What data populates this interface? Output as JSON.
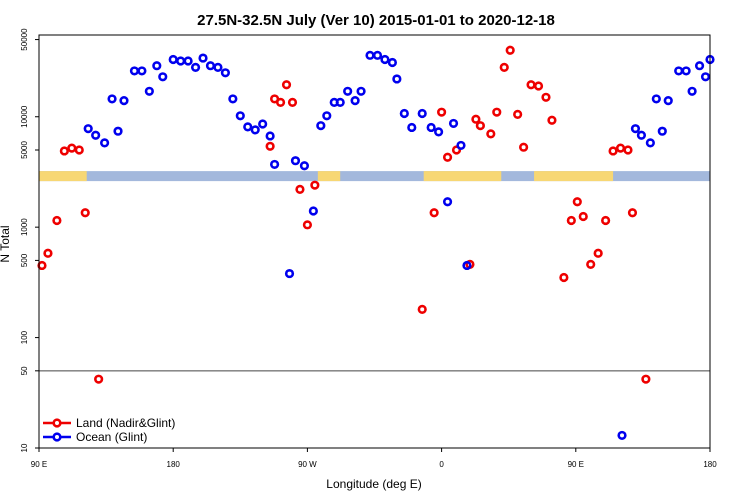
{
  "chart_data": {
    "type": "scatter",
    "title": "27.5N-32.5N July (Ver 10)   2015-01-01 to 2020-12-18",
    "xlabel": "Longitude (deg E)",
    "ylabel": "N Total",
    "x_ticks": [
      {
        "value": 90,
        "label": "90 E"
      },
      {
        "value": 180,
        "label": "180"
      },
      {
        "value": 270,
        "label": "90 W"
      },
      {
        "value": 360,
        "label": "0"
      },
      {
        "value": 450,
        "label": "90 E"
      },
      {
        "value": 540,
        "label": "180"
      }
    ],
    "xlim": [
      90,
      540
    ],
    "y_scale": "log",
    "ylim": [
      10,
      55000
    ],
    "y_ticks": [
      {
        "value": 10,
        "label": "10"
      },
      {
        "value": 50,
        "label": "50"
      },
      {
        "value": 100,
        "label": "100"
      },
      {
        "value": 500,
        "label": "500"
      },
      {
        "value": 1000,
        "label": "1000"
      },
      {
        "value": 5000,
        "label": "5000"
      },
      {
        "value": 10000,
        "label": "10000"
      },
      {
        "value": 50000,
        "label": "50000"
      }
    ],
    "reference_line": {
      "y": 50,
      "color": "#444444"
    },
    "landmask_band": {
      "y": 2900,
      "ocean_color": "#a3b8dc",
      "land_color": "#f7d774",
      "land_x": [
        [
          90,
          122
        ],
        [
          277,
          292
        ],
        [
          348,
          400
        ],
        [
          422,
          475
        ]
      ]
    },
    "legend": {
      "position": "bottom-left"
    },
    "series": [
      {
        "name": "Land (Nadir&Glint)",
        "color": "#ee0000",
        "points": [
          [
            92,
            450
          ],
          [
            96,
            580
          ],
          [
            102,
            1150
          ],
          [
            107,
            4900
          ],
          [
            112,
            5200
          ],
          [
            117,
            5000
          ],
          [
            121,
            1350
          ],
          [
            130,
            42
          ],
          [
            245,
            5400
          ],
          [
            248,
            14500
          ],
          [
            252,
            13500
          ],
          [
            256,
            19500
          ],
          [
            260,
            13500
          ],
          [
            265,
            2200
          ],
          [
            270,
            1050
          ],
          [
            275,
            2400
          ],
          [
            347,
            180
          ],
          [
            355,
            1350
          ],
          [
            360,
            11000
          ],
          [
            364,
            4300
          ],
          [
            370,
            5000
          ],
          [
            379,
            460
          ],
          [
            383,
            9500
          ],
          [
            386,
            8300
          ],
          [
            393,
            7000
          ],
          [
            397,
            11000
          ],
          [
            402,
            28000
          ],
          [
            406,
            40000
          ],
          [
            411,
            10500
          ],
          [
            415,
            5300
          ],
          [
            420,
            19500
          ],
          [
            425,
            19000
          ],
          [
            430,
            15000
          ],
          [
            434,
            9300
          ],
          [
            442,
            350
          ],
          [
            447,
            1150
          ],
          [
            451,
            1700
          ],
          [
            455,
            1250
          ],
          [
            460,
            460
          ],
          [
            465,
            580
          ],
          [
            470,
            1150
          ],
          [
            475,
            4900
          ],
          [
            480,
            5200
          ],
          [
            485,
            5000
          ],
          [
            488,
            1350
          ],
          [
            497,
            42
          ]
        ]
      },
      {
        "name": "Ocean (Glint)",
        "color": "#0000ee",
        "points": [
          [
            123,
            7800
          ],
          [
            128,
            6800
          ],
          [
            134,
            5800
          ],
          [
            139,
            14500
          ],
          [
            143,
            7400
          ],
          [
            147,
            14000
          ],
          [
            154,
            26000
          ],
          [
            159,
            26000
          ],
          [
            164,
            17000
          ],
          [
            169,
            29000
          ],
          [
            173,
            23000
          ],
          [
            180,
            33000
          ],
          [
            185,
            32000
          ],
          [
            190,
            32000
          ],
          [
            195,
            28000
          ],
          [
            200,
            34000
          ],
          [
            205,
            29000
          ],
          [
            210,
            28000
          ],
          [
            215,
            25000
          ],
          [
            220,
            14500
          ],
          [
            225,
            10200
          ],
          [
            230,
            8100
          ],
          [
            235,
            7600
          ],
          [
            240,
            8600
          ],
          [
            245,
            6700
          ],
          [
            248,
            3700
          ],
          [
            258,
            380
          ],
          [
            262,
            4000
          ],
          [
            268,
            3600
          ],
          [
            274,
            1400
          ],
          [
            279,
            8300
          ],
          [
            283,
            10200
          ],
          [
            288,
            13500
          ],
          [
            292,
            13500
          ],
          [
            297,
            17000
          ],
          [
            302,
            14000
          ],
          [
            306,
            17000
          ],
          [
            312,
            36000
          ],
          [
            317,
            36000
          ],
          [
            322,
            33000
          ],
          [
            327,
            31000
          ],
          [
            330,
            22000
          ],
          [
            335,
            10700
          ],
          [
            340,
            8000
          ],
          [
            347,
            10700
          ],
          [
            353,
            8000
          ],
          [
            358,
            7300
          ],
          [
            364,
            1700
          ],
          [
            368,
            8700
          ],
          [
            373,
            5500
          ],
          [
            377,
            450
          ],
          [
            481,
            13
          ],
          [
            490,
            7800
          ],
          [
            494,
            6800
          ],
          [
            500,
            5800
          ],
          [
            504,
            14500
          ],
          [
            508,
            7400
          ],
          [
            512,
            14000
          ],
          [
            519,
            26000
          ],
          [
            524,
            26000
          ],
          [
            528,
            17000
          ],
          [
            533,
            29000
          ],
          [
            537,
            23000
          ],
          [
            540,
            33000
          ]
        ]
      }
    ]
  }
}
